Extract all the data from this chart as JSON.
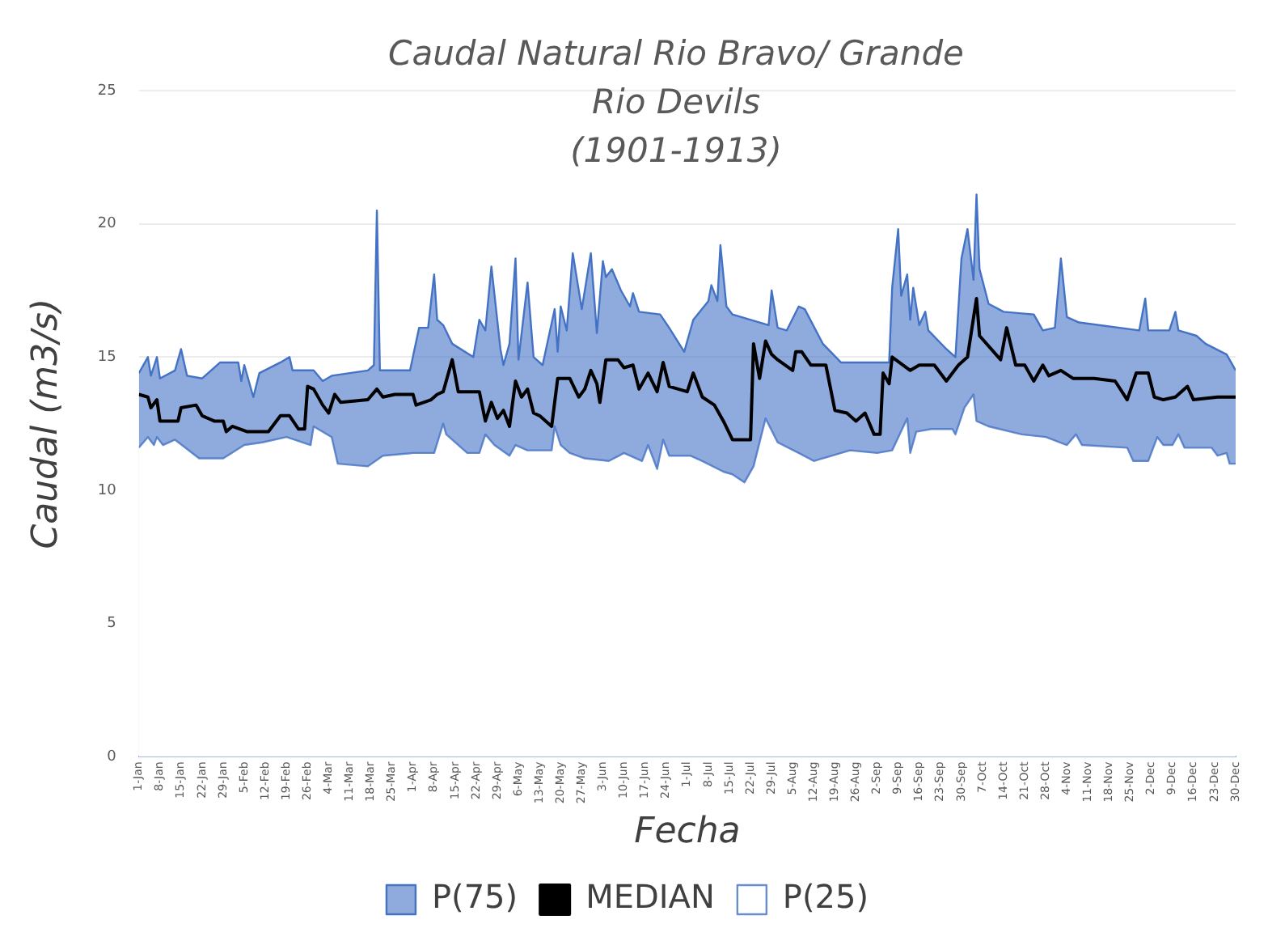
{
  "chart_data": {
    "type": "area",
    "title": "Caudal Natural Rio Bravo/ Grande",
    "subtitle": "Rio Devils\n(1901-1913)",
    "xlabel": "Fecha",
    "ylabel": "Caudal (m3/s)",
    "xlim": [
      "--01-01",
      "--12-30"
    ],
    "xticks": [
      {
        "value": "--01-01",
        "label": "1-Jan"
      },
      {
        "value": "--01-08",
        "label": "8-Jan"
      },
      {
        "value": "--01-15",
        "label": "15-Jan"
      },
      {
        "value": "--01-22",
        "label": "22-Jan"
      },
      {
        "value": "--01-29",
        "label": "29-Jan"
      },
      {
        "value": "--02-05",
        "label": "5-Feb"
      },
      {
        "value": "--02-12",
        "label": "12-Feb"
      },
      {
        "value": "--02-19",
        "label": "19-Feb"
      },
      {
        "value": "--02-26",
        "label": "26-Feb"
      },
      {
        "value": "--03-04",
        "label": "4-Mar"
      },
      {
        "value": "--03-11",
        "label": "11-Mar"
      },
      {
        "value": "--03-18",
        "label": "18-Mar"
      },
      {
        "value": "--03-25",
        "label": "25-Mar"
      },
      {
        "value": "--04-01",
        "label": "1-Apr"
      },
      {
        "value": "--04-08",
        "label": "8-Apr"
      },
      {
        "value": "--04-15",
        "label": "15-Apr"
      },
      {
        "value": "--04-22",
        "label": "22-Apr"
      },
      {
        "value": "--04-29",
        "label": "29-Apr"
      },
      {
        "value": "--05-06",
        "label": "6-May"
      },
      {
        "value": "--05-13",
        "label": "13-May"
      },
      {
        "value": "--05-20",
        "label": "20-May"
      },
      {
        "value": "--05-27",
        "label": "27-May"
      },
      {
        "value": "--06-03",
        "label": "3-Jun"
      },
      {
        "value": "--06-10",
        "label": "10-Jun"
      },
      {
        "value": "--06-17",
        "label": "17-Jun"
      },
      {
        "value": "--06-24",
        "label": "24-Jun"
      },
      {
        "value": "--07-01",
        "label": "1-Jul"
      },
      {
        "value": "--07-08",
        "label": "8-Jul"
      },
      {
        "value": "--07-15",
        "label": "15-Jul"
      },
      {
        "value": "--07-22",
        "label": "22-Jul"
      },
      {
        "value": "--07-29",
        "label": "29-Jul"
      },
      {
        "value": "--08-05",
        "label": "5-Aug"
      },
      {
        "value": "--08-12",
        "label": "12-Aug"
      },
      {
        "value": "--08-19",
        "label": "19-Aug"
      },
      {
        "value": "--08-26",
        "label": "26-Aug"
      },
      {
        "value": "--09-02",
        "label": "2-Sep"
      },
      {
        "value": "--09-09",
        "label": "9-Sep"
      },
      {
        "value": "--09-16",
        "label": "16-Sep"
      },
      {
        "value": "--09-23",
        "label": "23-Sep"
      },
      {
        "value": "--09-30",
        "label": "30-Sep"
      },
      {
        "value": "--10-07",
        "label": "7-Oct"
      },
      {
        "value": "--10-14",
        "label": "14-Oct"
      },
      {
        "value": "--10-21",
        "label": "21-Oct"
      },
      {
        "value": "--10-28",
        "label": "28-Oct"
      },
      {
        "value": "--11-04",
        "label": "4-Nov"
      },
      {
        "value": "--11-11",
        "label": "11-Nov"
      },
      {
        "value": "--11-18",
        "label": "18-Nov"
      },
      {
        "value": "--11-25",
        "label": "25-Nov"
      },
      {
        "value": "--12-02",
        "label": "2-Dec"
      },
      {
        "value": "--12-09",
        "label": "9-Dec"
      },
      {
        "value": "--12-16",
        "label": "16-Dec"
      },
      {
        "value": "--12-23",
        "label": "23-Dec"
      },
      {
        "value": "--12-30",
        "label": "30-Dec"
      }
    ],
    "ylim": [
      0,
      25
    ],
    "yticks": [
      0,
      5,
      10,
      15,
      20,
      25
    ],
    "grid": "y",
    "legend": "bottom",
    "marker": "none",
    "series": [
      {
        "name": "P(75)",
        "type": "area",
        "color": "#4472c4",
        "x": [
          "--01-01",
          "--01-04",
          "--01-05",
          "--01-07",
          "--01-08",
          "--01-13",
          "--01-15",
          "--01-17",
          "--01-22",
          "--01-28",
          "--02-03",
          "--02-04",
          "--02-05",
          "--02-08",
          "--02-10",
          "--02-17",
          "--02-20",
          "--02-21",
          "--02-28",
          "--03-02",
          "--03-05",
          "--03-17",
          "--03-19",
          "--03-20",
          "--03-21",
          "--03-31",
          "--04-03",
          "--04-06",
          "--04-08",
          "--04-09",
          "--04-11",
          "--04-14",
          "--04-21",
          "--04-23",
          "--04-25",
          "--04-27",
          "--04-30",
          "--05-01",
          "--05-03",
          "--05-05",
          "--05-06",
          "--05-09",
          "--05-11",
          "--05-14",
          "--05-18",
          "--05-19",
          "--05-20",
          "--05-22",
          "--05-24",
          "--05-27",
          "--05-30",
          "--06-01",
          "--06-03",
          "--06-04",
          "--06-06",
          "--06-09",
          "--06-12",
          "--06-13",
          "--06-15",
          "--06-22",
          "--06-25",
          "--06-30",
          "--07-03",
          "--07-08",
          "--07-09",
          "--07-11",
          "--07-12",
          "--07-14",
          "--07-16",
          "--07-28",
          "--07-29",
          "--07-31",
          "--08-03",
          "--08-07",
          "--08-09",
          "--08-15",
          "--08-21",
          "--09-06",
          "--09-07",
          "--09-09",
          "--09-10",
          "--09-12",
          "--09-13",
          "--09-14",
          "--09-16",
          "--09-18",
          "--09-19",
          "--09-25",
          "--09-28",
          "--09-30",
          "--10-02",
          "--10-04",
          "--10-05",
          "--10-06",
          "--10-09",
          "--10-14",
          "--10-24",
          "--10-27",
          "--10-31",
          "--11-02",
          "--11-04",
          "--11-08",
          "--11-28",
          "--11-30",
          "--12-01",
          "--12-08",
          "--12-10",
          "--12-11",
          "--12-17",
          "--12-20",
          "--12-27",
          "--12-30"
        ],
        "values": [
          14.4,
          15.0,
          14.3,
          15.0,
          14.2,
          14.5,
          15.3,
          14.3,
          14.2,
          14.8,
          14.8,
          14.1,
          14.7,
          13.5,
          14.4,
          14.8,
          15.0,
          14.5,
          14.5,
          14.1,
          14.3,
          14.5,
          14.7,
          20.5,
          14.5,
          14.5,
          16.1,
          16.1,
          18.1,
          16.4,
          16.2,
          15.5,
          15.0,
          16.4,
          16.0,
          18.4,
          15.3,
          14.7,
          15.5,
          18.7,
          14.9,
          17.8,
          15.0,
          14.7,
          16.8,
          15.2,
          16.9,
          16.0,
          18.9,
          16.8,
          18.9,
          15.9,
          18.6,
          18.0,
          18.3,
          17.5,
          16.9,
          17.4,
          16.7,
          16.6,
          16.1,
          15.2,
          16.4,
          17.1,
          17.7,
          17.1,
          19.2,
          16.9,
          16.6,
          16.2,
          17.5,
          16.1,
          16.0,
          16.9,
          16.8,
          15.5,
          14.8,
          14.8,
          17.6,
          19.8,
          17.3,
          18.1,
          16.4,
          17.6,
          16.2,
          16.7,
          16.0,
          15.3,
          15.0,
          18.7,
          19.8,
          17.9,
          21.1,
          18.3,
          17.0,
          16.7,
          16.6,
          16.0,
          16.1,
          18.7,
          16.5,
          16.3,
          16.0,
          17.2,
          16.0,
          16.0,
          16.7,
          16.0,
          15.8,
          15.5,
          15.1,
          14.5
        ]
      },
      {
        "name": "MEDIAN",
        "type": "line",
        "color": "#000000",
        "x": [
          "--01-01",
          "--01-04",
          "--01-05",
          "--01-07",
          "--01-08",
          "--01-14",
          "--01-15",
          "--01-20",
          "--01-22",
          "--01-26",
          "--01-29",
          "--01-30",
          "--02-01",
          "--02-06",
          "--02-13",
          "--02-17",
          "--02-20",
          "--02-23",
          "--02-25",
          "--02-26",
          "--02-28",
          "--03-02",
          "--03-04",
          "--03-06",
          "--03-08",
          "--03-17",
          "--03-20",
          "--03-22",
          "--03-26",
          "--04-01",
          "--04-02",
          "--04-07",
          "--04-09",
          "--04-11",
          "--04-14",
          "--04-16",
          "--04-23",
          "--04-25",
          "--04-27",
          "--04-29",
          "--05-01",
          "--05-03",
          "--05-05",
          "--05-07",
          "--05-09",
          "--05-11",
          "--05-13",
          "--05-17",
          "--05-19",
          "--05-23",
          "--05-26",
          "--05-28",
          "--05-30",
          "--06-01",
          "--06-02",
          "--06-04",
          "--06-08",
          "--06-10",
          "--06-13",
          "--06-15",
          "--06-18",
          "--06-21",
          "--06-23",
          "--06-25",
          "--07-01",
          "--07-03",
          "--07-06",
          "--07-10",
          "--07-13",
          "--07-16",
          "--07-22",
          "--07-23",
          "--07-25",
          "--07-27",
          "--07-29",
          "--07-31",
          "--08-05",
          "--08-06",
          "--08-08",
          "--08-11",
          "--08-16",
          "--08-19",
          "--08-23",
          "--08-26",
          "--08-29",
          "--09-01",
          "--09-03",
          "--09-04",
          "--09-06",
          "--09-07",
          "--09-13",
          "--09-16",
          "--09-21",
          "--09-25",
          "--09-29",
          "--10-02",
          "--10-05",
          "--10-06",
          "--10-13",
          "--10-15",
          "--10-18",
          "--10-21",
          "--10-24",
          "--10-27",
          "--10-29",
          "--11-02",
          "--11-06",
          "--11-13",
          "--11-20",
          "--11-24",
          "--11-27",
          "--12-01",
          "--12-03",
          "--12-06",
          "--12-10",
          "--12-14",
          "--12-16",
          "--12-24",
          "--12-30"
        ],
        "values": [
          13.6,
          13.5,
          13.1,
          13.4,
          12.6,
          12.6,
          13.1,
          13.2,
          12.8,
          12.6,
          12.6,
          12.2,
          12.4,
          12.2,
          12.2,
          12.8,
          12.8,
          12.3,
          12.3,
          13.9,
          13.8,
          13.2,
          12.9,
          13.6,
          13.3,
          13.4,
          13.8,
          13.5,
          13.6,
          13.6,
          13.2,
          13.4,
          13.6,
          13.7,
          14.9,
          13.7,
          13.7,
          12.6,
          13.3,
          12.7,
          13.0,
          12.4,
          14.1,
          13.5,
          13.8,
          12.9,
          12.8,
          12.4,
          14.2,
          14.2,
          13.5,
          13.8,
          14.5,
          14.0,
          13.3,
          14.9,
          14.9,
          14.6,
          14.7,
          13.8,
          14.4,
          13.7,
          14.8,
          13.9,
          13.7,
          14.4,
          13.5,
          13.2,
          12.6,
          11.9,
          11.9,
          15.5,
          14.2,
          15.6,
          15.1,
          14.9,
          14.5,
          15.2,
          15.2,
          14.7,
          14.7,
          13.0,
          12.9,
          12.6,
          12.9,
          12.1,
          12.1,
          14.4,
          14.0,
          15.0,
          14.5,
          14.7,
          14.7,
          14.1,
          14.7,
          15.0,
          17.2,
          15.8,
          14.9,
          16.1,
          14.7,
          14.7,
          14.1,
          14.7,
          14.3,
          14.5,
          14.2,
          14.2,
          14.1,
          13.4,
          14.4,
          14.4,
          13.5,
          13.4,
          13.5,
          13.9,
          13.4,
          13.5,
          13.5
        ]
      },
      {
        "name": "P(25)",
        "type": "area",
        "color": "#ffffff",
        "x": [
          "--01-01",
          "--01-04",
          "--01-06",
          "--01-07",
          "--01-09",
          "--01-13",
          "--01-21",
          "--01-29",
          "--02-05",
          "--02-11",
          "--02-19",
          "--02-27",
          "--02-28",
          "--03-05",
          "--03-07",
          "--03-17",
          "--03-22",
          "--04-01",
          "--04-08",
          "--04-11",
          "--04-12",
          "--04-19",
          "--04-23",
          "--04-25",
          "--04-28",
          "--05-03",
          "--05-05",
          "--05-09",
          "--05-17",
          "--05-18",
          "--05-20",
          "--05-23",
          "--05-28",
          "--06-05",
          "--06-10",
          "--06-16",
          "--06-18",
          "--06-21",
          "--06-23",
          "--06-25",
          "--07-02",
          "--07-06",
          "--07-13",
          "--07-16",
          "--07-20",
          "--07-23",
          "--07-27",
          "--07-31",
          "--08-07",
          "--08-12",
          "--08-24",
          "--09-02",
          "--09-07",
          "--09-12",
          "--09-13",
          "--09-15",
          "--09-20",
          "--09-27",
          "--09-28",
          "--10-01",
          "--10-04",
          "--10-05",
          "--10-09",
          "--10-20",
          "--10-28",
          "--11-04",
          "--11-07",
          "--11-09",
          "--11-24",
          "--11-26",
          "--12-01",
          "--12-04",
          "--12-06",
          "--12-09",
          "--12-11",
          "--12-13",
          "--12-22",
          "--12-24",
          "--12-27",
          "--12-28",
          "--12-30"
        ],
        "values": [
          11.6,
          12.0,
          11.7,
          12.0,
          11.7,
          11.9,
          11.2,
          11.2,
          11.7,
          11.8,
          12.0,
          11.7,
          12.4,
          12.0,
          11.0,
          10.9,
          11.3,
          11.4,
          11.4,
          12.5,
          12.1,
          11.4,
          11.4,
          12.1,
          11.7,
          11.3,
          11.7,
          11.5,
          11.5,
          12.4,
          11.7,
          11.4,
          11.2,
          11.1,
          11.4,
          11.1,
          11.7,
          10.8,
          11.9,
          11.3,
          11.3,
          11.1,
          10.7,
          10.6,
          10.3,
          10.9,
          12.7,
          11.8,
          11.4,
          11.1,
          11.5,
          11.4,
          11.5,
          12.7,
          11.4,
          12.2,
          12.3,
          12.3,
          12.1,
          13.1,
          13.6,
          12.6,
          12.4,
          12.1,
          12.0,
          11.7,
          12.1,
          11.7,
          11.6,
          11.1,
          11.1,
          12.0,
          11.7,
          11.7,
          12.1,
          11.6,
          11.6,
          11.3,
          11.4,
          11.0,
          11.0
        ]
      }
    ]
  }
}
